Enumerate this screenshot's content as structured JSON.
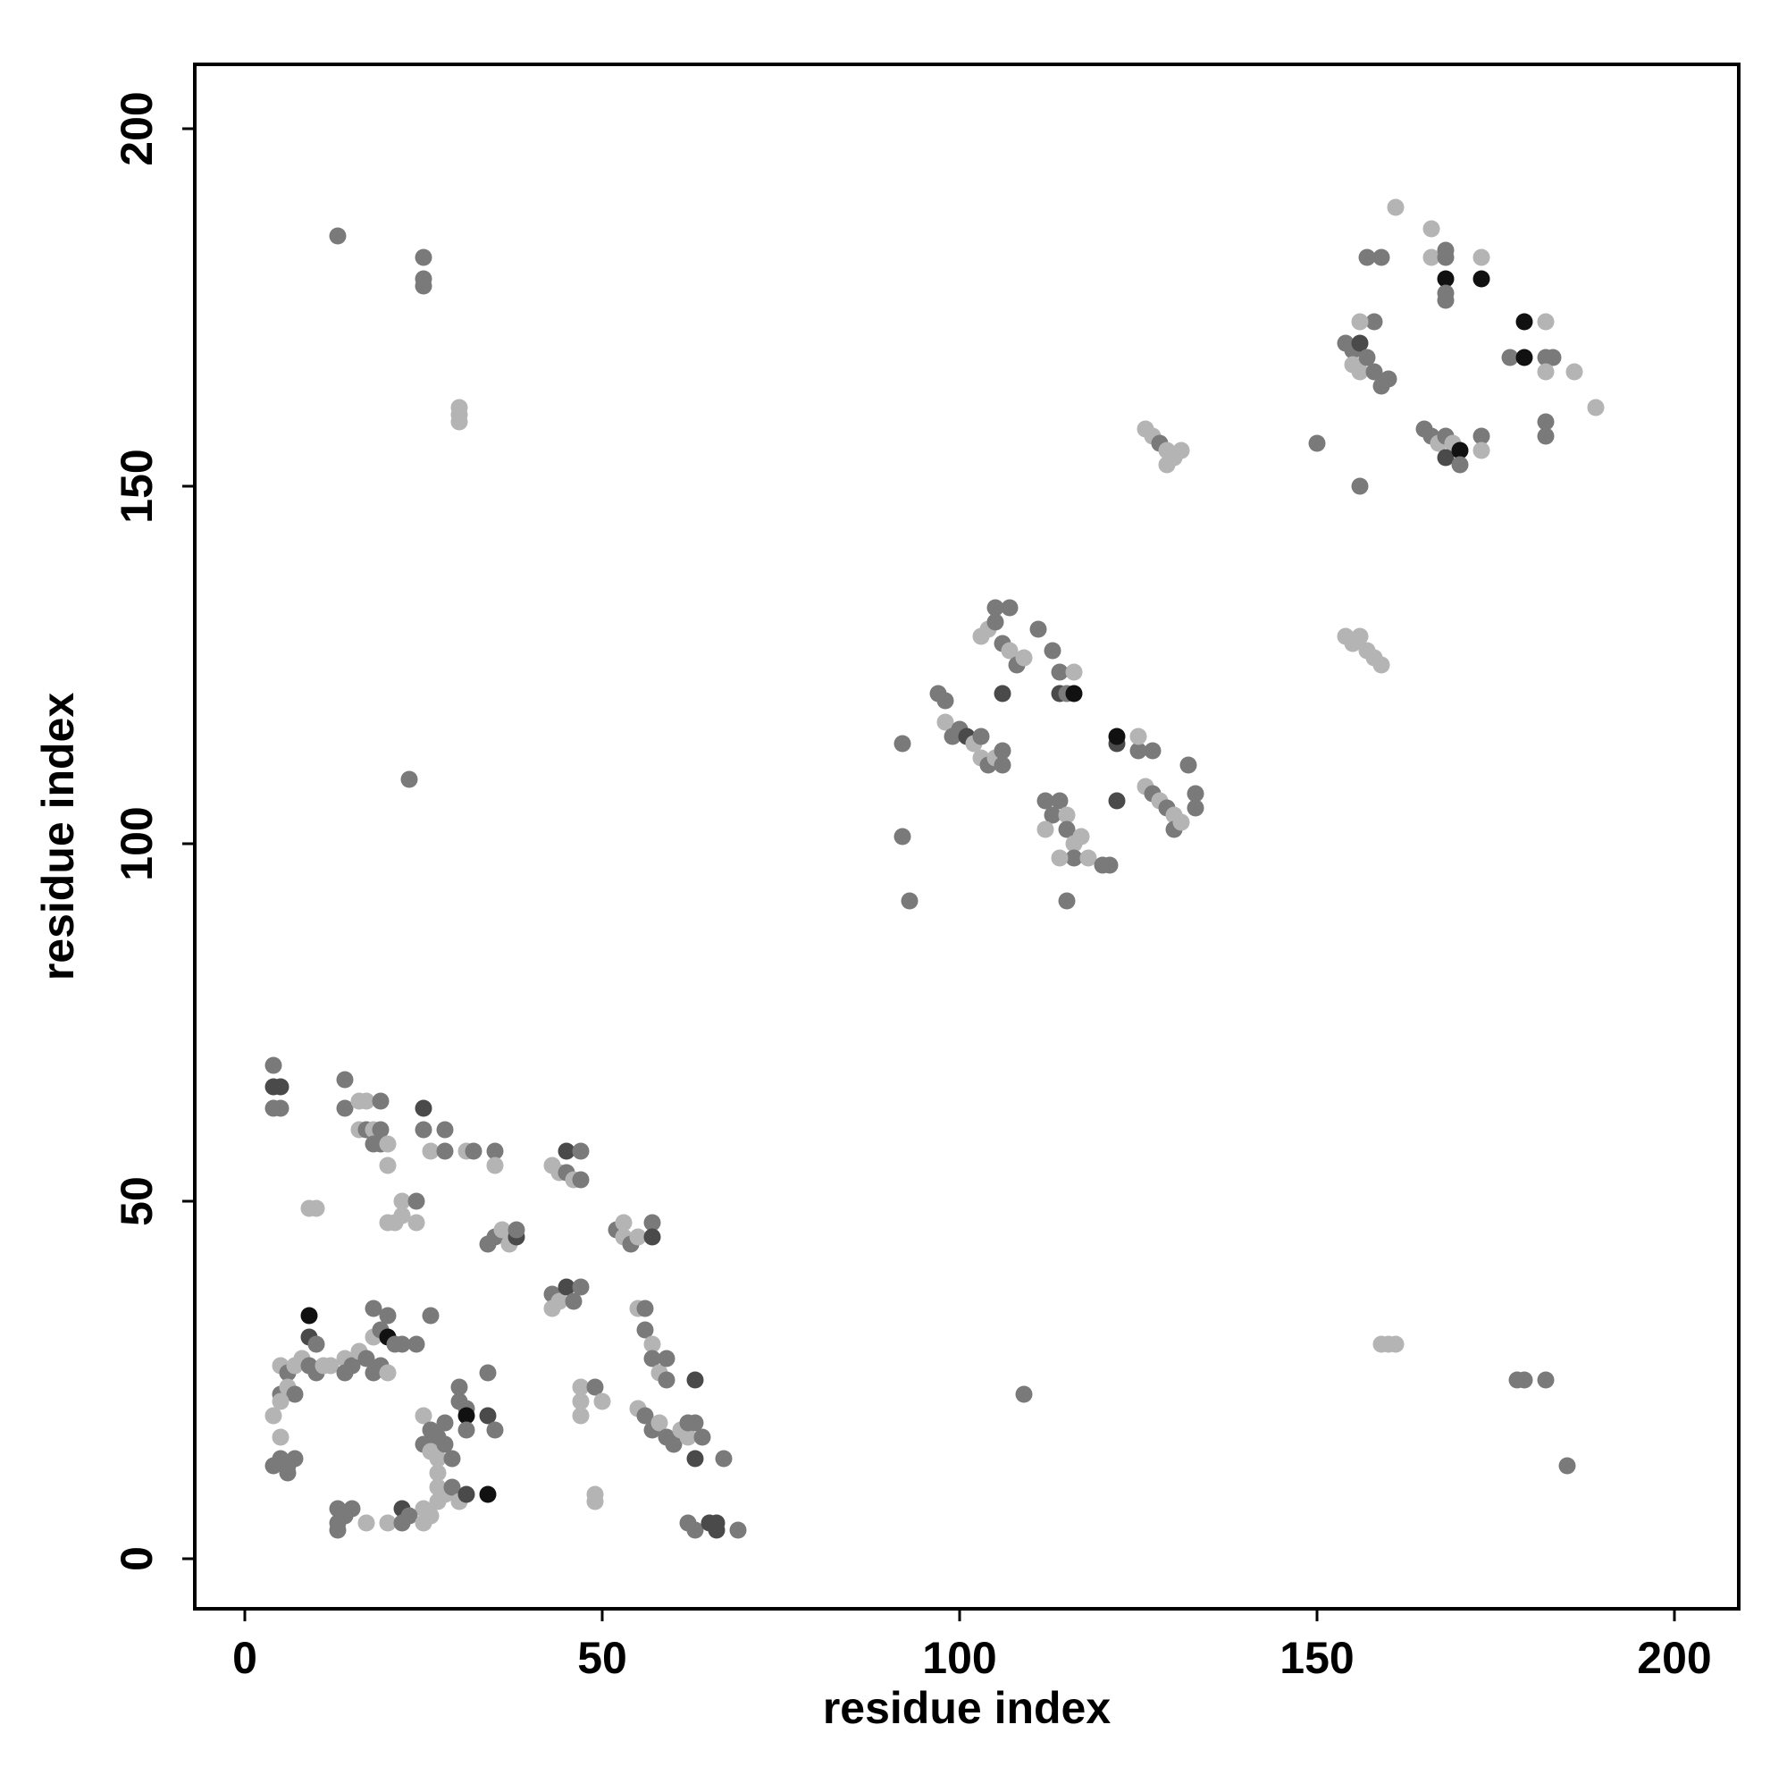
{
  "chart_data": {
    "type": "scatter",
    "title": "",
    "xlabel": "residue index",
    "ylabel": "residue index",
    "xlim": [
      -7,
      209
    ],
    "ylim": [
      -7,
      209
    ],
    "xticks": [
      "0",
      "50",
      "100",
      "150",
      "200"
    ],
    "yticks": [
      "0",
      "50",
      "100",
      "150",
      "200"
    ],
    "grid": false,
    "legend": "none",
    "colors": {
      "black": "#111111",
      "dark": "#4a4a4a",
      "mid": "#7a7a7a",
      "light": "#b4b4b4"
    },
    "points": [
      [
        13,
        185,
        "mid"
      ],
      [
        25,
        182,
        "mid"
      ],
      [
        25,
        179,
        "mid"
      ],
      [
        25,
        178,
        "mid"
      ],
      [
        30,
        161,
        "light"
      ],
      [
        30,
        160,
        "light"
      ],
      [
        30,
        159,
        "light"
      ],
      [
        23,
        109,
        "mid"
      ],
      [
        4,
        69,
        "mid"
      ],
      [
        4,
        66,
        "dark"
      ],
      [
        5,
        66,
        "dark"
      ],
      [
        4,
        63,
        "mid"
      ],
      [
        5,
        63,
        "mid"
      ],
      [
        14,
        67,
        "mid"
      ],
      [
        14,
        63,
        "mid"
      ],
      [
        16,
        64,
        "light"
      ],
      [
        17,
        64,
        "light"
      ],
      [
        19,
        64,
        "mid"
      ],
      [
        16,
        60,
        "light"
      ],
      [
        17,
        60,
        "mid"
      ],
      [
        18,
        60,
        "light"
      ],
      [
        19,
        60,
        "mid"
      ],
      [
        18,
        58,
        "mid"
      ],
      [
        19,
        58,
        "mid"
      ],
      [
        20,
        58,
        "light"
      ],
      [
        20,
        55,
        "light"
      ],
      [
        25,
        63,
        "dark"
      ],
      [
        25,
        60,
        "mid"
      ],
      [
        26,
        57,
        "light"
      ],
      [
        28,
        60,
        "mid"
      ],
      [
        28,
        57,
        "mid"
      ],
      [
        31,
        57,
        "light"
      ],
      [
        32,
        57,
        "mid"
      ],
      [
        35,
        57,
        "mid"
      ],
      [
        35,
        55,
        "light"
      ],
      [
        9,
        49,
        "light"
      ],
      [
        10,
        49,
        "light"
      ],
      [
        20,
        47,
        "light"
      ],
      [
        21,
        47,
        "light"
      ],
      [
        22,
        48,
        "light"
      ],
      [
        22,
        50,
        "light"
      ],
      [
        24,
        50,
        "mid"
      ],
      [
        24,
        47,
        "light"
      ],
      [
        34,
        44,
        "mid"
      ],
      [
        35,
        45,
        "mid"
      ],
      [
        36,
        46,
        "light"
      ],
      [
        37,
        44,
        "light"
      ],
      [
        38,
        45,
        "dark"
      ],
      [
        38,
        46,
        "mid"
      ],
      [
        43,
        55,
        "light"
      ],
      [
        44,
        54,
        "light"
      ],
      [
        45,
        57,
        "dark"
      ],
      [
        45,
        54,
        "mid"
      ],
      [
        46,
        53,
        "light"
      ],
      [
        47,
        57,
        "mid"
      ],
      [
        47,
        53,
        "mid"
      ],
      [
        43,
        37,
        "mid"
      ],
      [
        43,
        35,
        "light"
      ],
      [
        44,
        36,
        "light"
      ],
      [
        45,
        38,
        "dark"
      ],
      [
        46,
        36,
        "mid"
      ],
      [
        47,
        38,
        "mid"
      ],
      [
        52,
        46,
        "mid"
      ],
      [
        53,
        47,
        "light"
      ],
      [
        53,
        45,
        "light"
      ],
      [
        54,
        44,
        "mid"
      ],
      [
        55,
        45,
        "light"
      ],
      [
        57,
        47,
        "mid"
      ],
      [
        57,
        45,
        "dark"
      ],
      [
        9,
        34,
        "black"
      ],
      [
        9,
        31,
        "dark"
      ],
      [
        10,
        30,
        "mid"
      ],
      [
        5,
        27,
        "light"
      ],
      [
        6,
        26,
        "mid"
      ],
      [
        7,
        27,
        "light"
      ],
      [
        8,
        28,
        "light"
      ],
      [
        9,
        27,
        "mid"
      ],
      [
        10,
        26,
        "mid"
      ],
      [
        11,
        27,
        "light"
      ],
      [
        12,
        27,
        "light"
      ],
      [
        5,
        23,
        "mid"
      ],
      [
        6,
        24,
        "light"
      ],
      [
        7,
        23,
        "mid"
      ],
      [
        4,
        20,
        "light"
      ],
      [
        5,
        22,
        "light"
      ],
      [
        5,
        17,
        "light"
      ],
      [
        4,
        13,
        "mid"
      ],
      [
        5,
        14,
        "mid"
      ],
      [
        6,
        13,
        "mid"
      ],
      [
        7,
        14,
        "mid"
      ],
      [
        6,
        12,
        "mid"
      ],
      [
        14,
        28,
        "light"
      ],
      [
        15,
        27,
        "mid"
      ],
      [
        16,
        29,
        "light"
      ],
      [
        17,
        28,
        "mid"
      ],
      [
        18,
        26,
        "mid"
      ],
      [
        19,
        27,
        "mid"
      ],
      [
        20,
        26,
        "light"
      ],
      [
        14,
        26,
        "mid"
      ],
      [
        18,
        31,
        "light"
      ],
      [
        19,
        32,
        "mid"
      ],
      [
        18,
        35,
        "mid"
      ],
      [
        20,
        34,
        "mid"
      ],
      [
        20,
        31,
        "black"
      ],
      [
        21,
        30,
        "mid"
      ],
      [
        22,
        30,
        "mid"
      ],
      [
        24,
        30,
        "mid"
      ],
      [
        26,
        34,
        "mid"
      ],
      [
        25,
        20,
        "light"
      ],
      [
        26,
        18,
        "mid"
      ],
      [
        27,
        17,
        "mid"
      ],
      [
        28,
        19,
        "mid"
      ],
      [
        25,
        16,
        "mid"
      ],
      [
        26,
        15,
        "light"
      ],
      [
        27,
        14,
        "light"
      ],
      [
        28,
        16,
        "mid"
      ],
      [
        29,
        14,
        "mid"
      ],
      [
        27,
        12,
        "light"
      ],
      [
        30,
        24,
        "mid"
      ],
      [
        30,
        22,
        "mid"
      ],
      [
        31,
        21,
        "mid"
      ],
      [
        31,
        20,
        "black"
      ],
      [
        31,
        18,
        "mid"
      ],
      [
        34,
        26,
        "mid"
      ],
      [
        34,
        20,
        "dark"
      ],
      [
        35,
        18,
        "mid"
      ],
      [
        27,
        10,
        "light"
      ],
      [
        28,
        9,
        "light"
      ],
      [
        29,
        10,
        "mid"
      ],
      [
        30,
        8,
        "light"
      ],
      [
        31,
        9,
        "dark"
      ],
      [
        34,
        9,
        "black"
      ],
      [
        25,
        7,
        "light"
      ],
      [
        26,
        6,
        "light"
      ],
      [
        27,
        8,
        "light"
      ],
      [
        22,
        7,
        "dark"
      ],
      [
        23,
        6,
        "mid"
      ],
      [
        20,
        5,
        "light"
      ],
      [
        22,
        5,
        "mid"
      ],
      [
        25,
        5,
        "light"
      ],
      [
        13,
        7,
        "mid"
      ],
      [
        14,
        6,
        "mid"
      ],
      [
        15,
        7,
        "mid"
      ],
      [
        13,
        5,
        "mid"
      ],
      [
        13,
        4,
        "mid"
      ],
      [
        17,
        5,
        "light"
      ],
      [
        47,
        24,
        "light"
      ],
      [
        47,
        22,
        "light"
      ],
      [
        47,
        20,
        "light"
      ],
      [
        49,
        24,
        "mid"
      ],
      [
        50,
        22,
        "light"
      ],
      [
        49,
        9,
        "light"
      ],
      [
        49,
        8,
        "light"
      ],
      [
        55,
        35,
        "light"
      ],
      [
        56,
        35,
        "mid"
      ],
      [
        56,
        32,
        "mid"
      ],
      [
        57,
        30,
        "light"
      ],
      [
        57,
        28,
        "mid"
      ],
      [
        58,
        26,
        "light"
      ],
      [
        59,
        28,
        "mid"
      ],
      [
        59,
        25,
        "mid"
      ],
      [
        55,
        21,
        "light"
      ],
      [
        56,
        20,
        "mid"
      ],
      [
        57,
        18,
        "mid"
      ],
      [
        58,
        19,
        "light"
      ],
      [
        59,
        17,
        "mid"
      ],
      [
        60,
        16,
        "mid"
      ],
      [
        61,
        18,
        "light"
      ],
      [
        62,
        17,
        "light"
      ],
      [
        62,
        19,
        "mid"
      ],
      [
        63,
        19,
        "mid"
      ],
      [
        64,
        17,
        "mid"
      ],
      [
        63,
        14,
        "dark"
      ],
      [
        63,
        25,
        "dark"
      ],
      [
        62,
        5,
        "mid"
      ],
      [
        63,
        4,
        "mid"
      ],
      [
        65,
        5,
        "dark"
      ],
      [
        66,
        4,
        "dark"
      ],
      [
        66,
        5,
        "dark"
      ],
      [
        69,
        4,
        "mid"
      ],
      [
        67,
        14,
        "mid"
      ],
      [
        92,
        114,
        "mid"
      ],
      [
        92,
        101,
        "mid"
      ],
      [
        93,
        92,
        "mid"
      ],
      [
        97,
        121,
        "mid"
      ],
      [
        98,
        120,
        "mid"
      ],
      [
        98,
        117,
        "light"
      ],
      [
        99,
        115,
        "mid"
      ],
      [
        100,
        116,
        "mid"
      ],
      [
        101,
        115,
        "dark"
      ],
      [
        102,
        114,
        "light"
      ],
      [
        103,
        115,
        "mid"
      ],
      [
        103,
        112,
        "light"
      ],
      [
        104,
        111,
        "mid"
      ],
      [
        105,
        112,
        "light"
      ],
      [
        106,
        113,
        "mid"
      ],
      [
        106,
        111,
        "mid"
      ],
      [
        103,
        129,
        "light"
      ],
      [
        104,
        130,
        "light"
      ],
      [
        105,
        131,
        "mid"
      ],
      [
        106,
        128,
        "mid"
      ],
      [
        107,
        127,
        "light"
      ],
      [
        108,
        125,
        "mid"
      ],
      [
        109,
        126,
        "light"
      ],
      [
        105,
        133,
        "mid"
      ],
      [
        107,
        133,
        "mid"
      ],
      [
        111,
        130,
        "mid"
      ],
      [
        106,
        121,
        "dark"
      ],
      [
        113,
        127,
        "mid"
      ],
      [
        114,
        124,
        "mid"
      ],
      [
        114,
        121,
        "dark"
      ],
      [
        115,
        121,
        "mid"
      ],
      [
        116,
        121,
        "black"
      ],
      [
        116,
        124,
        "light"
      ],
      [
        109,
        23,
        "mid"
      ],
      [
        112,
        106,
        "mid"
      ],
      [
        113,
        104,
        "mid"
      ],
      [
        112,
        102,
        "light"
      ],
      [
        114,
        106,
        "mid"
      ],
      [
        115,
        104,
        "light"
      ],
      [
        115,
        102,
        "mid"
      ],
      [
        116,
        100,
        "light"
      ],
      [
        117,
        101,
        "light"
      ],
      [
        116,
        98,
        "mid"
      ],
      [
        114,
        98,
        "light"
      ],
      [
        118,
        98,
        "light"
      ],
      [
        120,
        97,
        "mid"
      ],
      [
        121,
        97,
        "mid"
      ],
      [
        122,
        106,
        "dark"
      ],
      [
        122,
        114,
        "dark"
      ],
      [
        122,
        115,
        "black"
      ],
      [
        115,
        92,
        "mid"
      ],
      [
        125,
        113,
        "mid"
      ],
      [
        125,
        115,
        "light"
      ],
      [
        127,
        113,
        "mid"
      ],
      [
        126,
        108,
        "light"
      ],
      [
        127,
        107,
        "mid"
      ],
      [
        128,
        106,
        "light"
      ],
      [
        129,
        105,
        "mid"
      ],
      [
        130,
        104,
        "light"
      ],
      [
        130,
        102,
        "mid"
      ],
      [
        131,
        103,
        "light"
      ],
      [
        132,
        111,
        "mid"
      ],
      [
        133,
        107,
        "mid"
      ],
      [
        133,
        105,
        "mid"
      ],
      [
        126,
        158,
        "light"
      ],
      [
        127,
        157,
        "light"
      ],
      [
        128,
        156,
        "mid"
      ],
      [
        129,
        155,
        "light"
      ],
      [
        130,
        154,
        "light"
      ],
      [
        131,
        155,
        "light"
      ],
      [
        129,
        153,
        "light"
      ],
      [
        154,
        129,
        "light"
      ],
      [
        155,
        128,
        "light"
      ],
      [
        156,
        129,
        "light"
      ],
      [
        157,
        127,
        "light"
      ],
      [
        158,
        126,
        "light"
      ],
      [
        159,
        125,
        "light"
      ],
      [
        150,
        156,
        "mid"
      ],
      [
        156,
        150,
        "mid"
      ],
      [
        154,
        170,
        "mid"
      ],
      [
        155,
        169,
        "mid"
      ],
      [
        156,
        170,
        "dark"
      ],
      [
        155,
        167,
        "light"
      ],
      [
        156,
        166,
        "light"
      ],
      [
        157,
        168,
        "mid"
      ],
      [
        158,
        166,
        "mid"
      ],
      [
        159,
        164,
        "mid"
      ],
      [
        160,
        165,
        "mid"
      ],
      [
        158,
        173,
        "mid"
      ],
      [
        156,
        173,
        "light"
      ],
      [
        157,
        182,
        "mid"
      ],
      [
        159,
        182,
        "mid"
      ],
      [
        161,
        189,
        "light"
      ],
      [
        166,
        186,
        "light"
      ],
      [
        166,
        182,
        "light"
      ],
      [
        168,
        183,
        "mid"
      ],
      [
        168,
        182,
        "mid"
      ],
      [
        168,
        179,
        "black"
      ],
      [
        168,
        177,
        "mid"
      ],
      [
        168,
        176,
        "mid"
      ],
      [
        173,
        179,
        "black"
      ],
      [
        173,
        182,
        "light"
      ],
      [
        165,
        158,
        "mid"
      ],
      [
        166,
        157,
        "mid"
      ],
      [
        167,
        156,
        "light"
      ],
      [
        168,
        157,
        "mid"
      ],
      [
        169,
        156,
        "light"
      ],
      [
        168,
        154,
        "dark"
      ],
      [
        170,
        155,
        "black"
      ],
      [
        170,
        153,
        "mid"
      ],
      [
        173,
        157,
        "mid"
      ],
      [
        173,
        155,
        "light"
      ],
      [
        177,
        168,
        "mid"
      ],
      [
        179,
        168,
        "black"
      ],
      [
        179,
        173,
        "black"
      ],
      [
        182,
        173,
        "light"
      ],
      [
        182,
        168,
        "mid"
      ],
      [
        183,
        168,
        "mid"
      ],
      [
        182,
        166,
        "light"
      ],
      [
        186,
        166,
        "light"
      ],
      [
        182,
        159,
        "mid"
      ],
      [
        182,
        157,
        "mid"
      ],
      [
        189,
        161,
        "light"
      ],
      [
        159,
        30,
        "light"
      ],
      [
        160,
        30,
        "light"
      ],
      [
        161,
        30,
        "light"
      ],
      [
        178,
        25,
        "mid"
      ],
      [
        179,
        25,
        "mid"
      ],
      [
        182,
        25,
        "mid"
      ],
      [
        185,
        13,
        "mid"
      ]
    ]
  }
}
